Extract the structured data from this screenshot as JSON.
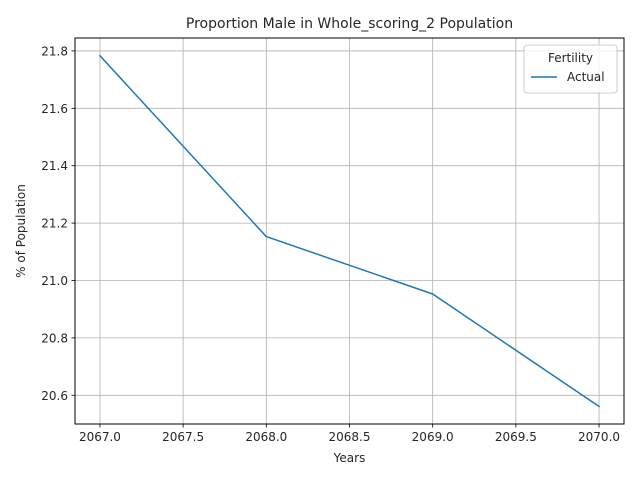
{
  "chart_data": {
    "type": "line",
    "title": "Proportion Male in Whole_scoring_2 Population",
    "xlabel": "Years",
    "ylabel": "% of Population",
    "x": [
      2067,
      2068,
      2069,
      2070
    ],
    "series": [
      {
        "name": "Actual",
        "values": [
          21.783,
          21.153,
          20.953,
          20.561
        ],
        "color": "#1f77b4"
      }
    ],
    "xlim": [
      2066.85,
      2070.15
    ],
    "ylim": [
      20.5,
      21.845
    ],
    "xticks": [
      "2067.0",
      "2067.5",
      "2068.0",
      "2068.5",
      "2069.0",
      "2069.5",
      "2070.0"
    ],
    "yticks": [
      "20.6",
      "20.8",
      "21.0",
      "21.2",
      "21.4",
      "21.6",
      "21.8"
    ],
    "grid": true,
    "legend": {
      "title": "Fertility",
      "position": "top-right"
    }
  }
}
